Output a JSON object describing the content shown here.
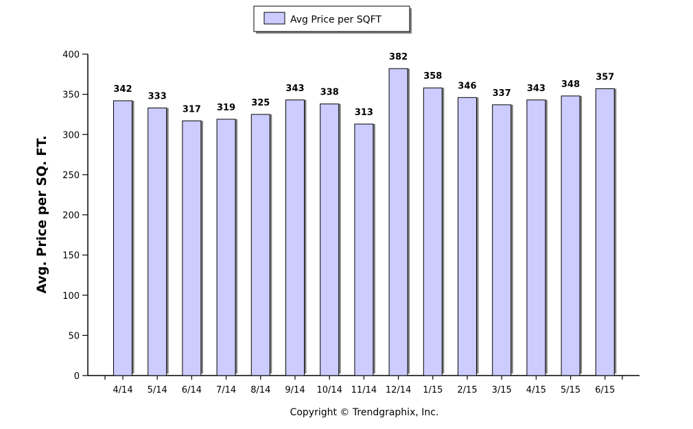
{
  "chart_data": {
    "type": "bar",
    "categories": [
      "4/14",
      "5/14",
      "6/14",
      "7/14",
      "8/14",
      "9/14",
      "10/14",
      "11/14",
      "12/14",
      "1/15",
      "2/15",
      "3/15",
      "4/15",
      "5/15",
      "6/15"
    ],
    "series": [
      {
        "name": "Avg Price per SQFT",
        "values": [
          342,
          333,
          317,
          319,
          325,
          343,
          338,
          313,
          382,
          358,
          346,
          337,
          343,
          348,
          357
        ]
      }
    ],
    "ylabel": "Avg. Price per SQ. FT.",
    "xlabel": "",
    "ylim": [
      0,
      400
    ],
    "yticks": [
      0,
      50,
      100,
      150,
      200,
      250,
      300,
      350,
      400
    ],
    "legend_position": "top-center",
    "grid": false,
    "bar_color": "#ccccff",
    "bar_edge_color": "#000000",
    "data_labels": true
  },
  "footer": {
    "copyright": "Copyright © Trendgraphix, Inc."
  },
  "colors": {
    "bar": "#ccccff",
    "shadow": "#7f7f7f",
    "axis": "#000000"
  }
}
